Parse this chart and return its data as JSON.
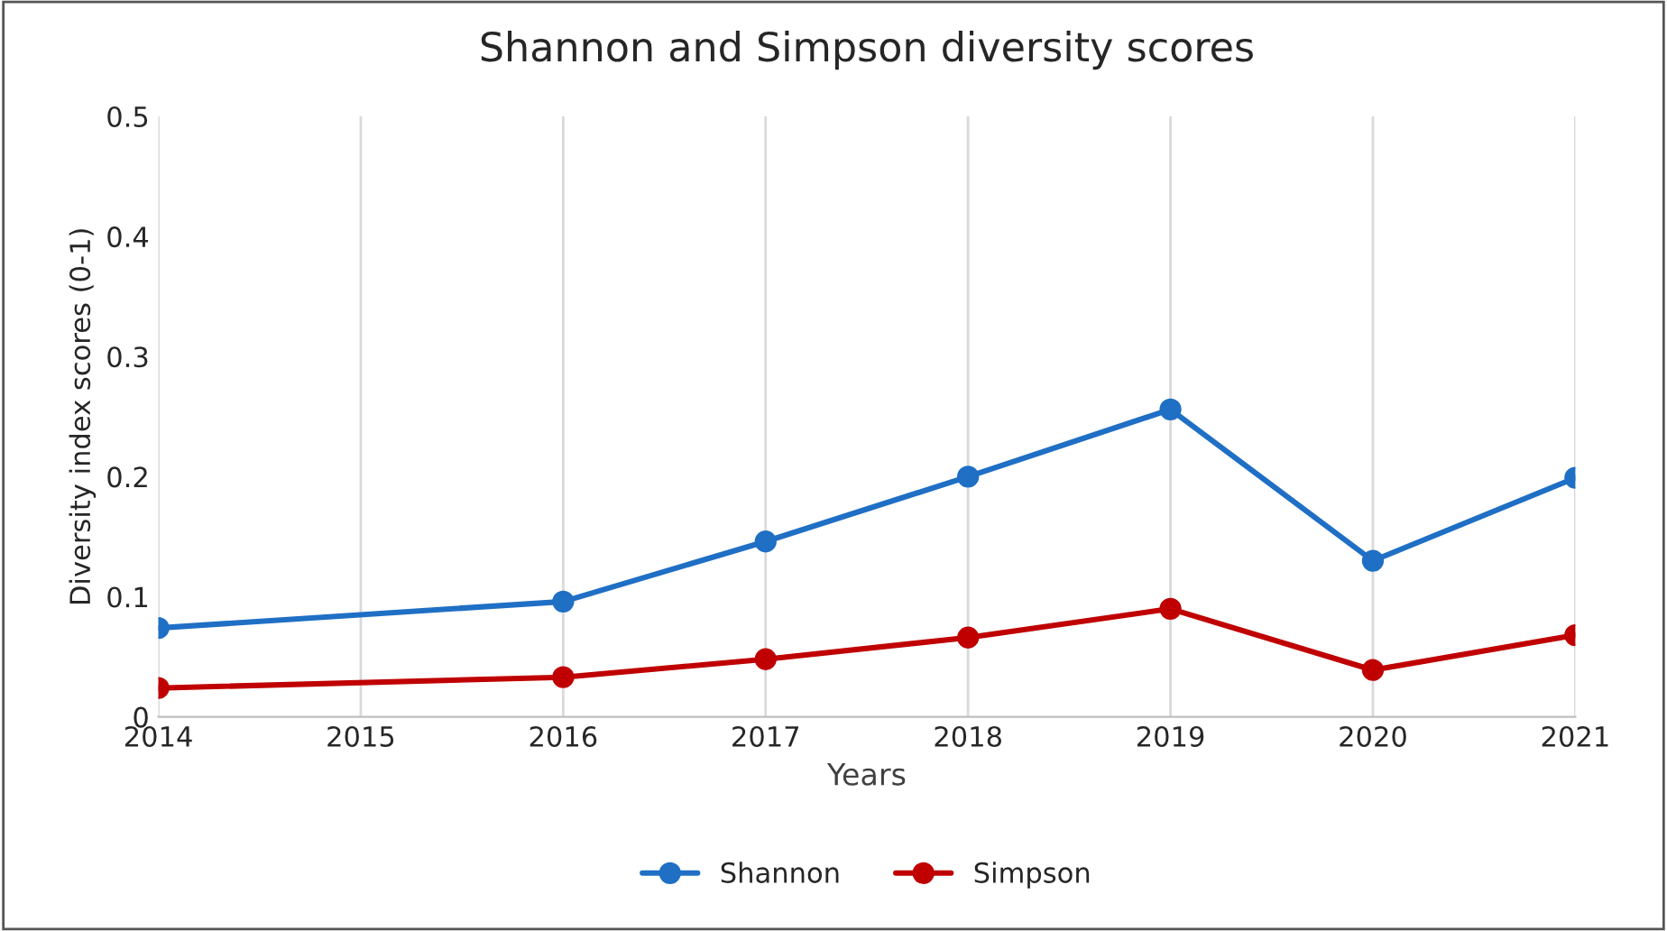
{
  "chart_data": {
    "type": "line",
    "title": "Shannon and Simpson diversity scores",
    "xlabel": "Years",
    "ylabel": "Diversity index scores (0-1)",
    "x": [
      2014,
      2016,
      2017,
      2018,
      2019,
      2020,
      2021
    ],
    "series": [
      {
        "name": "Shannon",
        "color": "#1f6fc5",
        "values": [
          0.074,
          0.096,
          0.146,
          0.2,
          0.256,
          0.13,
          0.199
        ]
      },
      {
        "name": "Simpson",
        "color": "#c00000",
        "values": [
          0.024,
          0.033,
          0.048,
          0.066,
          0.09,
          0.039,
          0.068
        ]
      }
    ],
    "xlim": [
      2014,
      2021
    ],
    "xticks": [
      2014,
      2015,
      2016,
      2017,
      2018,
      2019,
      2020,
      2021
    ],
    "ylim": [
      0,
      0.5
    ],
    "yticks": [
      0,
      0.1,
      0.2,
      0.3,
      0.4,
      0.5
    ],
    "grid": "x",
    "legend": "bottom",
    "marker": "circle",
    "line_style": "solid"
  }
}
